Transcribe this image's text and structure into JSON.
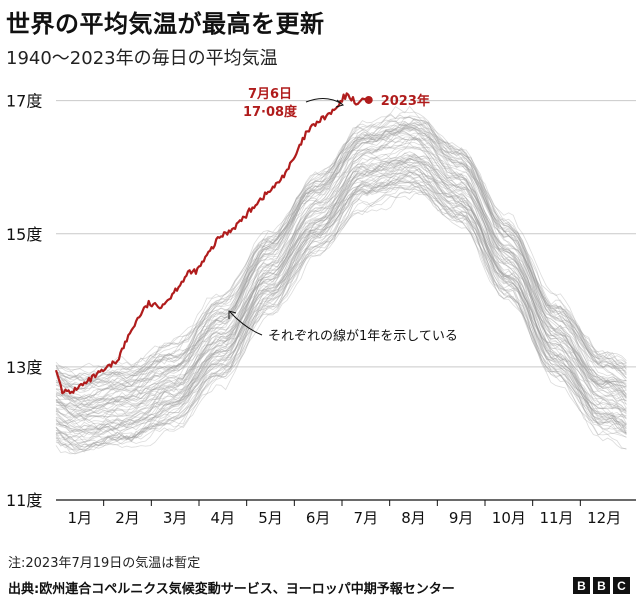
{
  "header": {
    "title": "世界の平均気温が最高を更新",
    "subtitle": "1940～2023年の毎日の平均気温"
  },
  "chart_data": {
    "type": "line",
    "ylabels": [
      "17度",
      "15度",
      "13度",
      "11度"
    ],
    "yticks": [
      17,
      15,
      13,
      11
    ],
    "ylim": [
      11,
      17.25
    ],
    "months": [
      "1月",
      "2月",
      "3月",
      "4月",
      "5月",
      "6月",
      "7月",
      "8月",
      "9月",
      "10月",
      "11月",
      "12月"
    ],
    "background_series": {
      "years": "1940–2022",
      "description_color": "#9a9a9a",
      "climatology_by_month": [
        12.2,
        12.3,
        12.6,
        13.3,
        14.3,
        15.2,
        15.95,
        16.1,
        15.6,
        14.5,
        13.3,
        12.5
      ],
      "spread": 0.6
    },
    "highlight_series": {
      "name": "2023年",
      "color": "#b01c1c",
      "points": [
        [
          1,
          12.95
        ],
        [
          5,
          12.65
        ],
        [
          10,
          12.6
        ],
        [
          15,
          12.7
        ],
        [
          20,
          12.75
        ],
        [
          25,
          12.85
        ],
        [
          32,
          12.95
        ],
        [
          40,
          13.1
        ],
        [
          45,
          13.35
        ],
        [
          50,
          13.6
        ],
        [
          55,
          13.8
        ],
        [
          60,
          13.95
        ],
        [
          66,
          13.9
        ],
        [
          72,
          14.0
        ],
        [
          80,
          14.25
        ],
        [
          85,
          14.4
        ],
        [
          91,
          14.45
        ],
        [
          98,
          14.7
        ],
        [
          105,
          14.95
        ],
        [
          112,
          15.05
        ],
        [
          121,
          15.25
        ],
        [
          128,
          15.45
        ],
        [
          135,
          15.6
        ],
        [
          142,
          15.75
        ],
        [
          152,
          16.1
        ],
        [
          160,
          16.5
        ],
        [
          166,
          16.65
        ],
        [
          172,
          16.75
        ],
        [
          178,
          16.85
        ],
        [
          182,
          16.95
        ],
        [
          184,
          17.05
        ],
        [
          187,
          17.08
        ],
        [
          190,
          17.02
        ],
        [
          193,
          16.95
        ],
        [
          196,
          17.03
        ],
        [
          200,
          17.01
        ]
      ]
    },
    "annotations": {
      "peak_date": "7月6日",
      "peak_value": "17·08度",
      "series_label": "2023年",
      "lines_label": "それぞれの線が1年を示している"
    }
  },
  "footer": {
    "note": "注:2023年7月19日の気温は暫定",
    "source": "出典:欧州連合コペルニクス気候変動サービス、ヨーロッパ中期予報センター",
    "logo": [
      "B",
      "B",
      "C"
    ]
  }
}
